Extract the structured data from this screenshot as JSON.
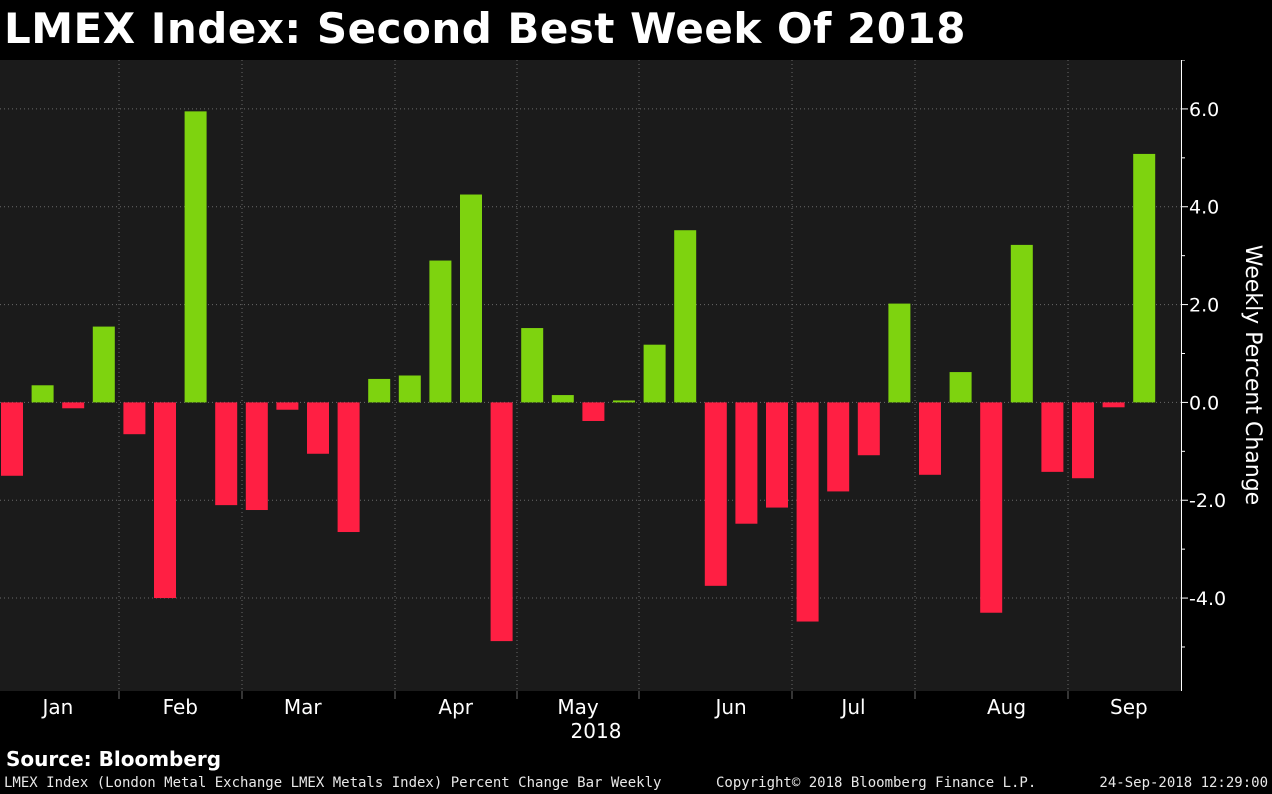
{
  "title": "LMEX Index: Second Best Week Of 2018",
  "source": "Source: Bloomberg",
  "footer": {
    "description": "LMEX Index (London Metal Exchange LMEX Metals Index) Percent Change Bar  Weekly",
    "copyright": "Copyright© 2018 Bloomberg Finance L.P.",
    "timestamp": "24-Sep-2018 12:29:00"
  },
  "colors": {
    "background": "#000000",
    "plot_background": "#1b1b1b",
    "positive": "#7ed30f",
    "negative": "#ff1f43",
    "text": "#ffffff",
    "grid": "#6a6a6a"
  },
  "chart_data": {
    "type": "bar",
    "ylabel": "Weekly Percent Change",
    "xlabel": "2018",
    "ylim": [
      -5.9,
      7.0
    ],
    "yticks": [
      -4.0,
      -2.0,
      0.0,
      2.0,
      4.0,
      6.0
    ],
    "ytick_labels": [
      "-4.0",
      "-2.0",
      "0.0",
      "2.0",
      "4.0",
      "6.0"
    ],
    "grid": true,
    "values": [
      -1.5,
      0.35,
      -0.12,
      1.55,
      -0.65,
      -4.0,
      5.95,
      -2.1,
      -2.2,
      -0.15,
      -1.05,
      -2.65,
      0.48,
      0.55,
      2.9,
      4.25,
      -4.88,
      1.52,
      0.15,
      -0.38,
      0.04,
      1.18,
      3.52,
      -3.75,
      -2.48,
      -2.15,
      -4.48,
      -1.82,
      -1.08,
      2.02,
      -1.48,
      0.62,
      -4.3,
      3.22,
      -1.42,
      -1.55,
      -0.1,
      5.08
    ],
    "months": [
      "Jan",
      "Feb",
      "Mar",
      "Apr",
      "May",
      "Jun",
      "Jul",
      "Aug",
      "Sep"
    ],
    "month_label_after_bar": [
      1,
      5,
      9,
      14,
      18,
      23,
      27,
      32,
      36
    ],
    "month_divider_after_bar": [
      3,
      7,
      12,
      16,
      20,
      25,
      29,
      34
    ]
  }
}
